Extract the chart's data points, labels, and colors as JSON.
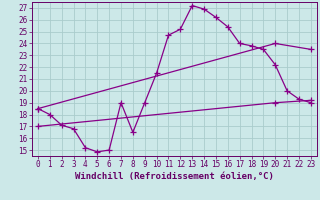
{
  "xlabel": "Windchill (Refroidissement éolien,°C)",
  "xlim": [
    -0.5,
    23.5
  ],
  "ylim": [
    14.5,
    27.5
  ],
  "xticks": [
    0,
    1,
    2,
    3,
    4,
    5,
    6,
    7,
    8,
    9,
    10,
    11,
    12,
    13,
    14,
    15,
    16,
    17,
    18,
    19,
    20,
    21,
    22,
    23
  ],
  "yticks": [
    15,
    16,
    17,
    18,
    19,
    20,
    21,
    22,
    23,
    24,
    25,
    26,
    27
  ],
  "background_color": "#cce8e8",
  "grid_color": "#aacccc",
  "line_color": "#880088",
  "line1_x": [
    0,
    1,
    2,
    3,
    4,
    5,
    6,
    7,
    8,
    9,
    10,
    11,
    12,
    13,
    14,
    15,
    16,
    17,
    18,
    19,
    20,
    21,
    22,
    23
  ],
  "line1_y": [
    18.5,
    18.0,
    17.1,
    16.8,
    15.2,
    14.85,
    15.0,
    19.0,
    16.5,
    19.0,
    21.5,
    24.7,
    25.2,
    27.2,
    26.9,
    26.2,
    25.4,
    24.0,
    23.8,
    23.5,
    22.2,
    20.0,
    19.3,
    19.0
  ],
  "line2_x": [
    0,
    20,
    23
  ],
  "line2_y": [
    18.5,
    24.0,
    23.5
  ],
  "line3_x": [
    0,
    20,
    23
  ],
  "line3_y": [
    17.0,
    19.0,
    19.2
  ],
  "marker_size": 4,
  "font_color": "#660066",
  "tick_fontsize": 5.5,
  "xlabel_fontsize": 6.5,
  "spine_color": "#660066"
}
